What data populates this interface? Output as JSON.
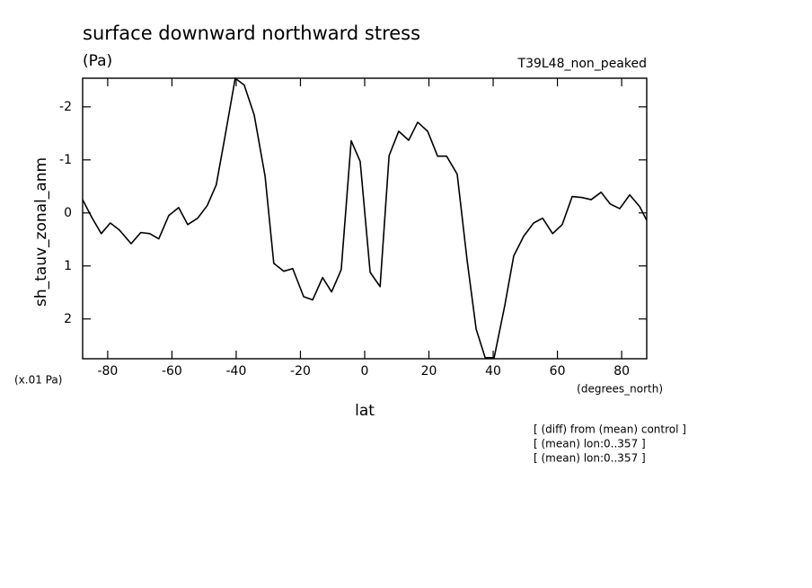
{
  "chart_data": {
    "type": "line",
    "title": "surface downward northward stress",
    "units": "(Pa)",
    "run_label": "T39L48_non_peaked",
    "y_label": "sh_tauv_zonal_anm",
    "y_scale_note": "(x.01 Pa)",
    "x_units": "(degrees_north)",
    "x_label": "lat",
    "notes": [
      "[ (diff) from (mean) control ]",
      "[ (mean) lon:0..357 ]",
      "[ (mean) lon:0..357 ]"
    ],
    "x": [
      -87.8,
      -85.0,
      -82.0,
      -79.2,
      -76.4,
      -72.7,
      -69.7,
      -66.9,
      -64.1,
      -61.0,
      -57.9,
      -55.1,
      -52.0,
      -49.0,
      -46.2,
      -43.4,
      -40.3,
      -37.5,
      -34.4,
      -31.0,
      -28.3,
      -25.2,
      -22.4,
      -19.0,
      -16.2,
      -13.1,
      -10.3,
      -7.3,
      -4.2,
      -1.4,
      1.7,
      4.8,
      7.6,
      10.6,
      13.7,
      16.5,
      19.6,
      22.7,
      25.5,
      28.8,
      31.9,
      34.7,
      37.5,
      40.3,
      43.6,
      46.4,
      49.5,
      52.6,
      55.4,
      58.5,
      61.5,
      64.6,
      67.7,
      70.5,
      73.6,
      76.4,
      79.4,
      82.5,
      85.6,
      87.8
    ],
    "series": [
      {
        "color": "#000000",
        "values": [
          -0.25,
          0.08,
          0.39,
          0.19,
          0.32,
          0.58,
          0.37,
          0.39,
          0.49,
          0.05,
          -0.1,
          0.22,
          0.1,
          -0.14,
          -0.53,
          -1.47,
          -2.54,
          -2.41,
          -1.85,
          -0.69,
          0.95,
          1.1,
          1.05,
          1.58,
          1.64,
          1.22,
          1.49,
          1.07,
          -1.36,
          -0.97,
          1.12,
          1.39,
          -1.08,
          -1.54,
          -1.37,
          -1.71,
          -1.54,
          -1.07,
          -1.07,
          -0.73,
          0.9,
          2.19,
          2.73,
          2.73,
          1.75,
          0.81,
          0.44,
          0.19,
          0.1,
          0.39,
          0.22,
          -0.31,
          -0.29,
          -0.25,
          -0.39,
          -0.17,
          -0.08,
          -0.34,
          -0.12,
          0.14
        ]
      }
    ],
    "xlim": [
      -87.8,
      87.8
    ],
    "xticks": [
      -80,
      -60,
      -40,
      -20,
      0,
      20,
      40,
      60,
      80
    ],
    "ylim": [
      -2.54,
      2.75
    ],
    "yticks": [
      -2,
      -1,
      0,
      1,
      2
    ],
    "y_inverted": true,
    "grid": false
  }
}
